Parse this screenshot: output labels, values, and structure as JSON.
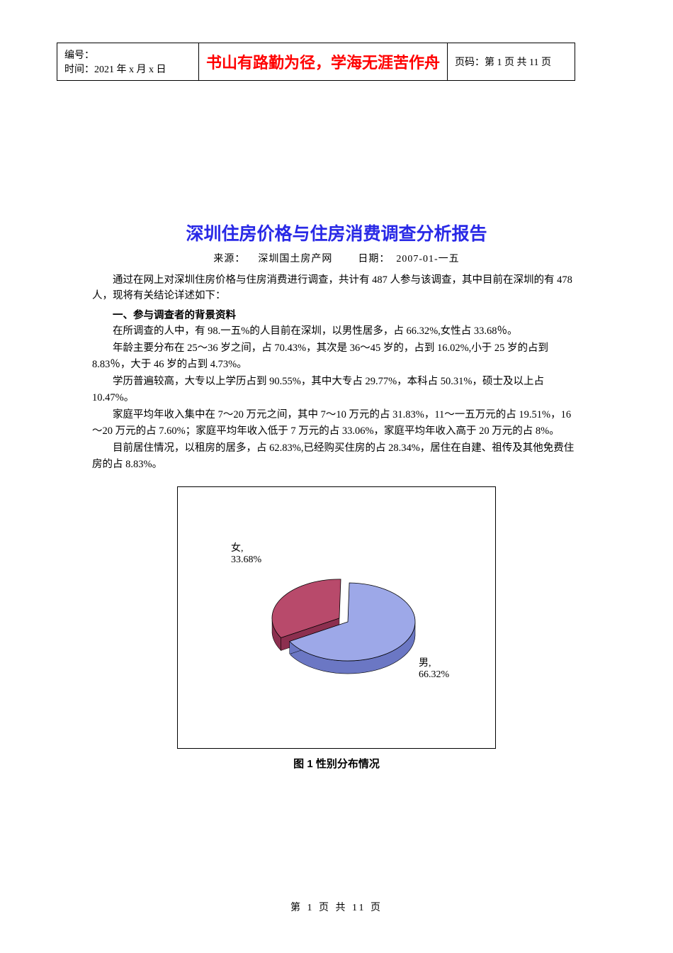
{
  "header": {
    "left_line1": "编号：",
    "left_line2": "时间：2021 年 x 月 x 日",
    "center": "书山有路勤为径，学海无涯苦作舟",
    "right": "页码：第 1 页  共 11 页"
  },
  "title": "深圳住房价格与住房消费调查分析报告",
  "meta": {
    "source_label": "来源：",
    "source_value": "深圳国土房产网",
    "date_label": "日期：",
    "date_value": "2007-01-一五"
  },
  "paragraphs": {
    "intro1": "通过在网上对深圳住房价格与住房消费进行调查，共计有 487 人参与该调查，其中目前在深圳的有 478 人，现将有关结论详述如下：",
    "section1_heading": "一、参与调查者的背景资料",
    "p1": "在所调查的人中，有 98.一五%的人目前在深圳，以男性居多，占 66.32%,女性占 33.68％。",
    "p2": "年龄主要分布在 25～36 岁之间，占 70.43%，其次是 36～45 岁的，占到 16.02%,小于 25 岁的占到 8.83％，大于 46 岁的占到 4.73%。",
    "p3": "学历普遍较高，大专以上学历占到 90.55%，其中大专占 29.77%，本科占 50.31%，硕士及以上占 10.47%。",
    "p4": "家庭平均年收入集中在 7～20 万元之间，其中 7～10 万元的占 31.83%，11～一五万元的占 19.51%，16～20 万元的占 7.60%；家庭平均年收入低于 7 万元的占 33.06%，家庭平均年收入高于 20 万元的占 8%。",
    "p5": "目前居住情况，以租房的居多，占 62.83%,已经购买住房的占 28.34%，居住在自建、祖传及其他免费住房的占 8.83%。"
  },
  "chart": {
    "type": "pie",
    "title": "图 1     性别分布情况",
    "slices": [
      {
        "label": "女,",
        "value_text": "33.68%",
        "value": 33.68,
        "color": "#b84a6b",
        "side_color": "#8c2f4f"
      },
      {
        "label": "男,",
        "value_text": "66.32%",
        "value": 66.32,
        "color": "#9da8e8",
        "side_color": "#6b77c4"
      }
    ],
    "background_color": "#ffffff",
    "border_color": "#000000",
    "label_fontsize": 14,
    "label_color": "#000000",
    "depth": 18
  },
  "footer": "第  1  页  共  11  页"
}
